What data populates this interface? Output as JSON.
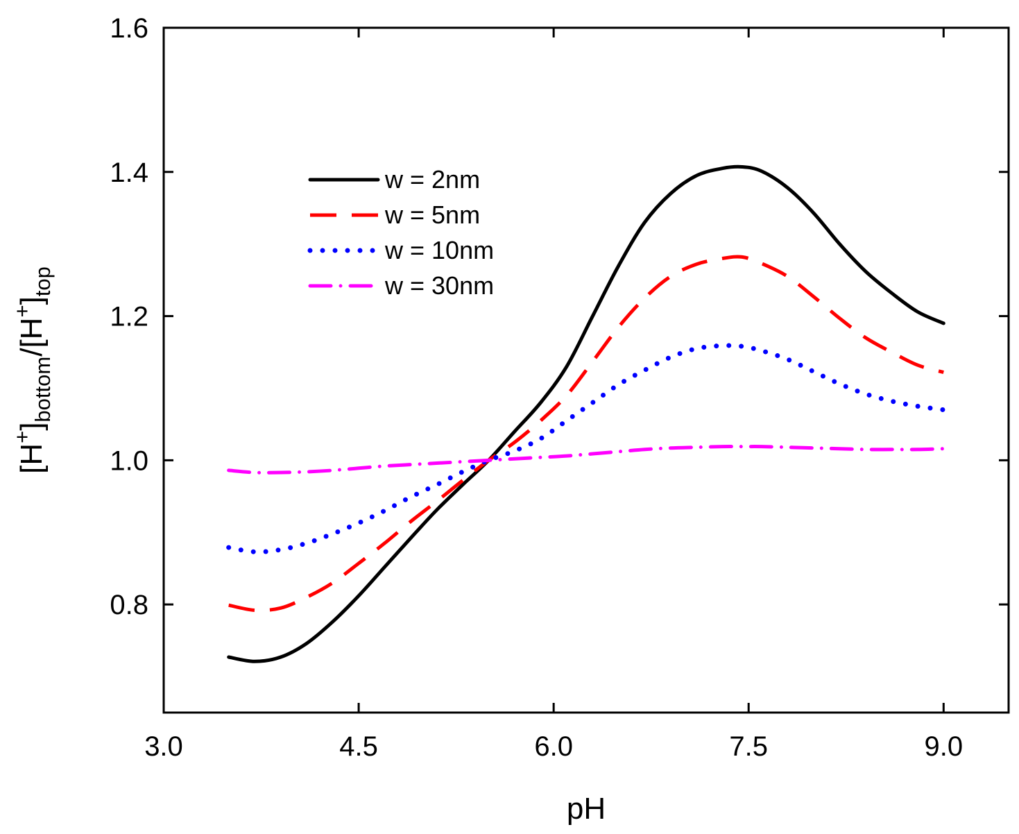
{
  "chart_data": {
    "type": "line",
    "xlabel": "pH",
    "ylabel": {
      "parts": [
        {
          "text": "[H",
          "style": "normal"
        },
        {
          "text": "+",
          "style": "sup"
        },
        {
          "text": "]",
          "style": "normal"
        },
        {
          "text": "bottom",
          "style": "sub"
        },
        {
          "text": "/[H",
          "style": "normal"
        },
        {
          "text": "+",
          "style": "sup"
        },
        {
          "text": "]",
          "style": "normal"
        },
        {
          "text": "top",
          "style": "sub"
        }
      ]
    },
    "xlim": [
      3.0,
      9.5
    ],
    "ylim": [
      0.65,
      1.6
    ],
    "xticks": [
      3.0,
      4.5,
      6.0,
      7.5,
      9.0
    ],
    "xtick_labels": [
      "3.0",
      "4.5",
      "6.0",
      "7.5",
      "9.0"
    ],
    "yticks": [
      0.8,
      1.0,
      1.2,
      1.4,
      1.6
    ],
    "ytick_labels": [
      "0.8",
      "1.0",
      "1.2",
      "1.4",
      "1.6"
    ],
    "grid": false,
    "legend_position": "upper-left",
    "series": [
      {
        "name": "w = 2nm",
        "color": "#000000",
        "style": "solid",
        "x": [
          3.5,
          3.7,
          3.9,
          4.1,
          4.3,
          4.5,
          4.7,
          4.9,
          5.1,
          5.3,
          5.5,
          5.7,
          5.9,
          6.1,
          6.3,
          6.5,
          6.7,
          6.9,
          7.1,
          7.3,
          7.45,
          7.6,
          7.8,
          8.0,
          8.2,
          8.4,
          8.6,
          8.8,
          9.0
        ],
        "y": [
          0.727,
          0.721,
          0.727,
          0.746,
          0.776,
          0.812,
          0.852,
          0.892,
          0.931,
          0.966,
          1.0,
          1.04,
          1.08,
          1.13,
          1.2,
          1.27,
          1.33,
          1.37,
          1.395,
          1.405,
          1.407,
          1.401,
          1.378,
          1.343,
          1.3,
          1.262,
          1.232,
          1.206,
          1.19
        ]
      },
      {
        "name": "w = 5nm",
        "color": "#ff0000",
        "style": "dashed",
        "x": [
          3.5,
          3.7,
          3.9,
          4.1,
          4.3,
          4.5,
          4.7,
          4.9,
          5.1,
          5.3,
          5.5,
          5.7,
          5.9,
          6.1,
          6.3,
          6.5,
          6.7,
          6.9,
          7.1,
          7.3,
          7.45,
          7.6,
          7.8,
          8.0,
          8.2,
          8.4,
          8.6,
          8.8,
          9.0
        ],
        "y": [
          0.799,
          0.792,
          0.795,
          0.81,
          0.83,
          0.857,
          0.885,
          0.915,
          0.943,
          0.972,
          1.0,
          1.025,
          1.055,
          1.09,
          1.137,
          1.185,
          1.225,
          1.255,
          1.272,
          1.28,
          1.282,
          1.273,
          1.255,
          1.227,
          1.197,
          1.17,
          1.15,
          1.132,
          1.122
        ]
      },
      {
        "name": "w = 10nm",
        "color": "#0000ff",
        "style": "dotted",
        "x": [
          3.5,
          3.7,
          3.9,
          4.1,
          4.3,
          4.5,
          4.7,
          4.9,
          5.1,
          5.3,
          5.5,
          5.7,
          5.9,
          6.1,
          6.3,
          6.5,
          6.7,
          6.9,
          7.1,
          7.3,
          7.45,
          7.6,
          7.8,
          8.0,
          8.2,
          8.4,
          8.6,
          8.8,
          9.0
        ],
        "y": [
          0.879,
          0.873,
          0.876,
          0.885,
          0.898,
          0.913,
          0.93,
          0.949,
          0.966,
          0.984,
          1.0,
          1.013,
          1.03,
          1.055,
          1.08,
          1.105,
          1.125,
          1.143,
          1.155,
          1.159,
          1.158,
          1.152,
          1.14,
          1.123,
          1.106,
          1.092,
          1.082,
          1.075,
          1.07
        ]
      },
      {
        "name": "w = 30nm",
        "color": "#ff00ff",
        "style": "dashdot",
        "x": [
          3.5,
          3.7,
          3.9,
          4.1,
          4.3,
          4.5,
          4.7,
          4.9,
          5.1,
          5.3,
          5.5,
          5.7,
          5.9,
          6.1,
          6.3,
          6.5,
          6.7,
          6.9,
          7.1,
          7.3,
          7.45,
          7.6,
          7.8,
          8.0,
          8.2,
          8.4,
          8.6,
          8.8,
          9.0
        ],
        "y": [
          0.986,
          0.983,
          0.983,
          0.984,
          0.986,
          0.989,
          0.992,
          0.994,
          0.996,
          0.998,
          1.0,
          1.002,
          1.004,
          1.006,
          1.009,
          1.012,
          1.015,
          1.017,
          1.018,
          1.019,
          1.019,
          1.019,
          1.018,
          1.017,
          1.016,
          1.015,
          1.015,
          1.015,
          1.016
        ]
      }
    ]
  }
}
